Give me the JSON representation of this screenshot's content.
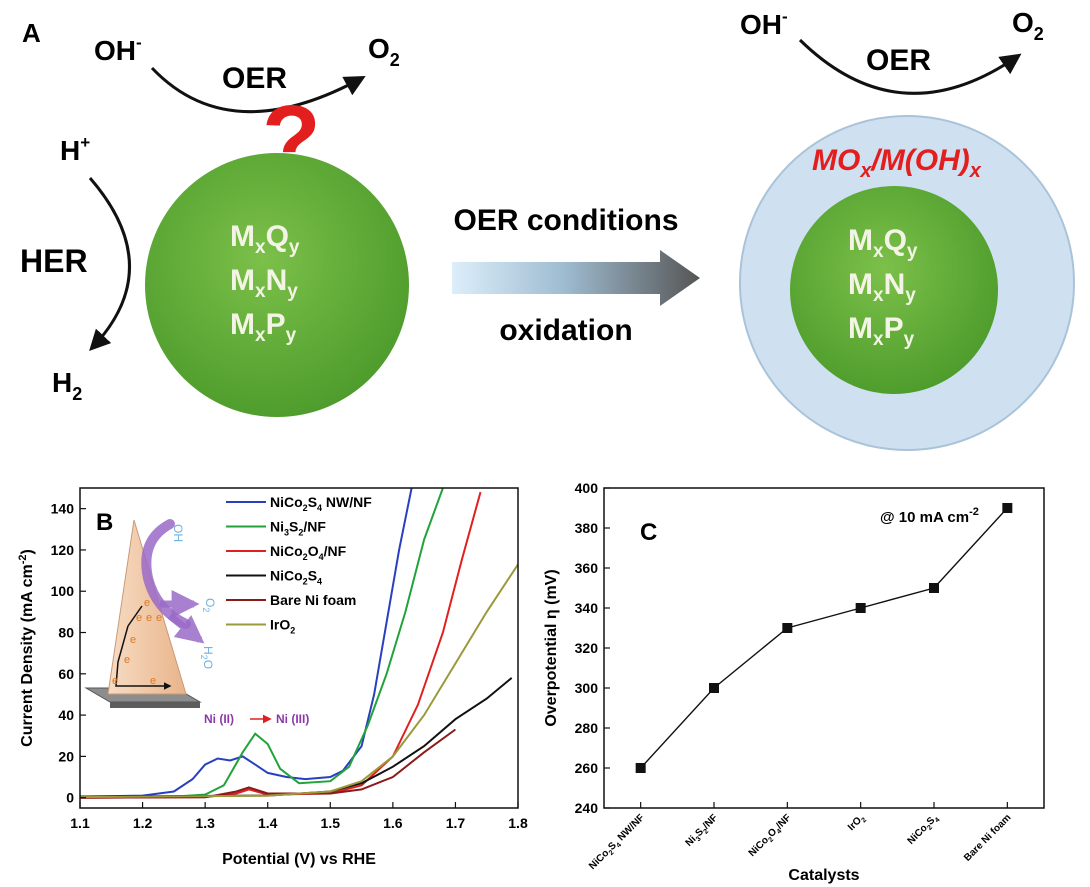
{
  "panel_a": {
    "label": "A",
    "left": {
      "oer_reactant": "OH",
      "oer_reactant_charge": "-",
      "oer_label": "OER",
      "oer_product": "O",
      "oer_product_sub": "2",
      "question_mark": "?",
      "her_reactant": "H",
      "her_reactant_charge": "+",
      "her_label": "HER",
      "her_product": "H",
      "her_product_sub": "2",
      "particle_rows": [
        {
          "m": "M",
          "sub1": "x",
          "e": "Q",
          "sub2": "y"
        },
        {
          "m": "M",
          "sub1": "x",
          "e": "N",
          "sub2": "y"
        },
        {
          "m": "M",
          "sub1": "x",
          "e": "P",
          "sub2": "y"
        }
      ]
    },
    "arrow": {
      "top": "OER conditions",
      "bottom": "oxidation"
    },
    "right": {
      "oer_reactant": "OH",
      "oer_reactant_charge": "-",
      "oer_label": "OER",
      "oer_product": "O",
      "oer_product_sub": "2",
      "shell": {
        "p1": "MO",
        "s1": "x",
        "p2": "/M(OH)",
        "s2": "x"
      },
      "particle_rows": [
        {
          "m": "M",
          "sub1": "x",
          "e": "Q",
          "sub2": "y"
        },
        {
          "m": "M",
          "sub1": "x",
          "e": "N",
          "sub2": "y"
        },
        {
          "m": "M",
          "sub1": "x",
          "e": "P",
          "sub2": "y"
        }
      ]
    },
    "colors": {
      "particle": "#5fa838",
      "shell": "#cfe1f1",
      "shell_text": "#e21e1e",
      "question": "#e21e1e"
    }
  },
  "panel_b": {
    "label": "B",
    "inset": {
      "oh": "OH",
      "o2": "O",
      "o2_sub": "2",
      "h2o": "H",
      "h2o_sub": "2",
      "h2o_o": "O",
      "electron": "e"
    },
    "annotation": {
      "left": "Ni (II)",
      "right": "Ni (III)"
    }
  },
  "panel_c": {
    "label": "C",
    "annotation": {
      "main": "@ 10 mA cm",
      "sup": "-2"
    }
  },
  "chart_data": [
    {
      "type": "line",
      "xlabel": "Potential (V) vs RHE",
      "ylabel": "Current Density (mA cm",
      "ylabel_sup": "-2",
      "ylabel_end": ")",
      "xlim": [
        1.1,
        1.8
      ],
      "ylim": [
        -5,
        150
      ],
      "xticks": [
        1.1,
        1.2,
        1.3,
        1.4,
        1.5,
        1.6,
        1.7,
        1.8
      ],
      "yticks": [
        0,
        20,
        40,
        60,
        80,
        100,
        120,
        140
      ],
      "legend_position": "top-center",
      "series": [
        {
          "name": "NiCo2S4 NW/NF",
          "label_parts": [
            [
              "NiCo",
              "n"
            ],
            [
              "2",
              "sub"
            ],
            [
              "S",
              "n"
            ],
            [
              "4",
              "sub"
            ],
            [
              " NW/NF",
              "n"
            ]
          ],
          "color": "#2a3fbf",
          "x": [
            1.1,
            1.2,
            1.25,
            1.28,
            1.3,
            1.32,
            1.34,
            1.36,
            1.38,
            1.4,
            1.43,
            1.46,
            1.5,
            1.52,
            1.55,
            1.57,
            1.59,
            1.61,
            1.63
          ],
          "y": [
            0.5,
            1,
            3,
            9,
            16,
            19,
            18,
            20,
            16,
            12,
            10,
            9,
            10,
            13,
            25,
            50,
            85,
            120,
            150
          ]
        },
        {
          "name": "Ni3S2/NF",
          "label_parts": [
            [
              "Ni",
              "n"
            ],
            [
              "3",
              "sub"
            ],
            [
              "S",
              "n"
            ],
            [
              "2",
              "sub"
            ],
            [
              "/NF",
              "n"
            ]
          ],
          "color": "#22a23a",
          "x": [
            1.1,
            1.25,
            1.3,
            1.33,
            1.36,
            1.38,
            1.4,
            1.42,
            1.45,
            1.5,
            1.53,
            1.56,
            1.59,
            1.62,
            1.65,
            1.68
          ],
          "y": [
            0.3,
            0.5,
            1.5,
            6,
            22,
            31,
            26,
            14,
            7,
            8,
            15,
            35,
            60,
            90,
            125,
            150
          ]
        },
        {
          "name": "NiCo2O4/NF",
          "label_parts": [
            [
              "NiCo",
              "n"
            ],
            [
              "2",
              "sub"
            ],
            [
              "O",
              "n"
            ],
            [
              "4",
              "sub"
            ],
            [
              "/NF",
              "n"
            ]
          ],
          "color": "#e02020",
          "x": [
            1.1,
            1.3,
            1.35,
            1.37,
            1.4,
            1.5,
            1.55,
            1.6,
            1.64,
            1.68,
            1.71,
            1.74
          ],
          "y": [
            0,
            0.3,
            2,
            4,
            1.5,
            2,
            6,
            20,
            45,
            80,
            115,
            148
          ]
        },
        {
          "name": "NiCo2S4",
          "label_parts": [
            [
              "NiCo",
              "n"
            ],
            [
              "2",
              "sub"
            ],
            [
              "S",
              "n"
            ],
            [
              "4",
              "sub"
            ]
          ],
          "color": "#111111",
          "x": [
            1.1,
            1.4,
            1.5,
            1.55,
            1.6,
            1.65,
            1.7,
            1.75,
            1.79
          ],
          "y": [
            0.5,
            1,
            3,
            7,
            15,
            25,
            38,
            48,
            58
          ]
        },
        {
          "name": "Bare Ni foam",
          "label_parts": [
            [
              "Bare Ni foam",
              "n"
            ]
          ],
          "color": "#8b1a1a",
          "x": [
            1.1,
            1.3,
            1.35,
            1.37,
            1.4,
            1.5,
            1.55,
            1.6,
            1.65,
            1.7
          ],
          "y": [
            0,
            0.2,
            3,
            5,
            2,
            2,
            4,
            10,
            22,
            33
          ]
        },
        {
          "name": "IrO2",
          "label_parts": [
            [
              "IrO",
              "n"
            ],
            [
              "2",
              "sub"
            ]
          ],
          "color": "#9a9a3a",
          "x": [
            1.1,
            1.4,
            1.5,
            1.55,
            1.6,
            1.65,
            1.7,
            1.75,
            1.8
          ],
          "y": [
            0.3,
            1,
            3,
            8,
            20,
            40,
            65,
            90,
            113
          ]
        }
      ]
    },
    {
      "type": "line",
      "xlabel": "Catalysts",
      "ylabel": "Overpotential η (mV)",
      "ylim": [
        240,
        400
      ],
      "yticks": [
        240,
        260,
        280,
        300,
        320,
        340,
        360,
        380,
        400
      ],
      "categories": [
        "NiCo2S4 NW/NF",
        "Ni3S2/NF",
        "NiCo2O4/NF",
        "IrO2",
        "NiCo2S4",
        "Bare Ni foam"
      ],
      "category_parts": [
        [
          [
            "NiCo",
            "n"
          ],
          [
            "2",
            "sub"
          ],
          [
            "S",
            "n"
          ],
          [
            "4",
            "sub"
          ],
          [
            " NW/NF",
            "n"
          ]
        ],
        [
          [
            "Ni",
            "n"
          ],
          [
            "3",
            "sub"
          ],
          [
            "S",
            "n"
          ],
          [
            "2",
            "sub"
          ],
          [
            "/NF",
            "n"
          ]
        ],
        [
          [
            "NiCo",
            "n"
          ],
          [
            "2",
            "sub"
          ],
          [
            "O",
            "n"
          ],
          [
            "4",
            "sub"
          ],
          [
            "/NF",
            "n"
          ]
        ],
        [
          [
            "IrO",
            "n"
          ],
          [
            "2",
            "sub"
          ]
        ],
        [
          [
            "NiCo",
            "n"
          ],
          [
            "2",
            "sub"
          ],
          [
            "S",
            "n"
          ],
          [
            "4",
            "sub"
          ]
        ],
        [
          [
            "Bare Ni foam",
            "n"
          ]
        ]
      ],
      "values": [
        260,
        300,
        330,
        340,
        350,
        390
      ],
      "color": "#111111"
    }
  ]
}
